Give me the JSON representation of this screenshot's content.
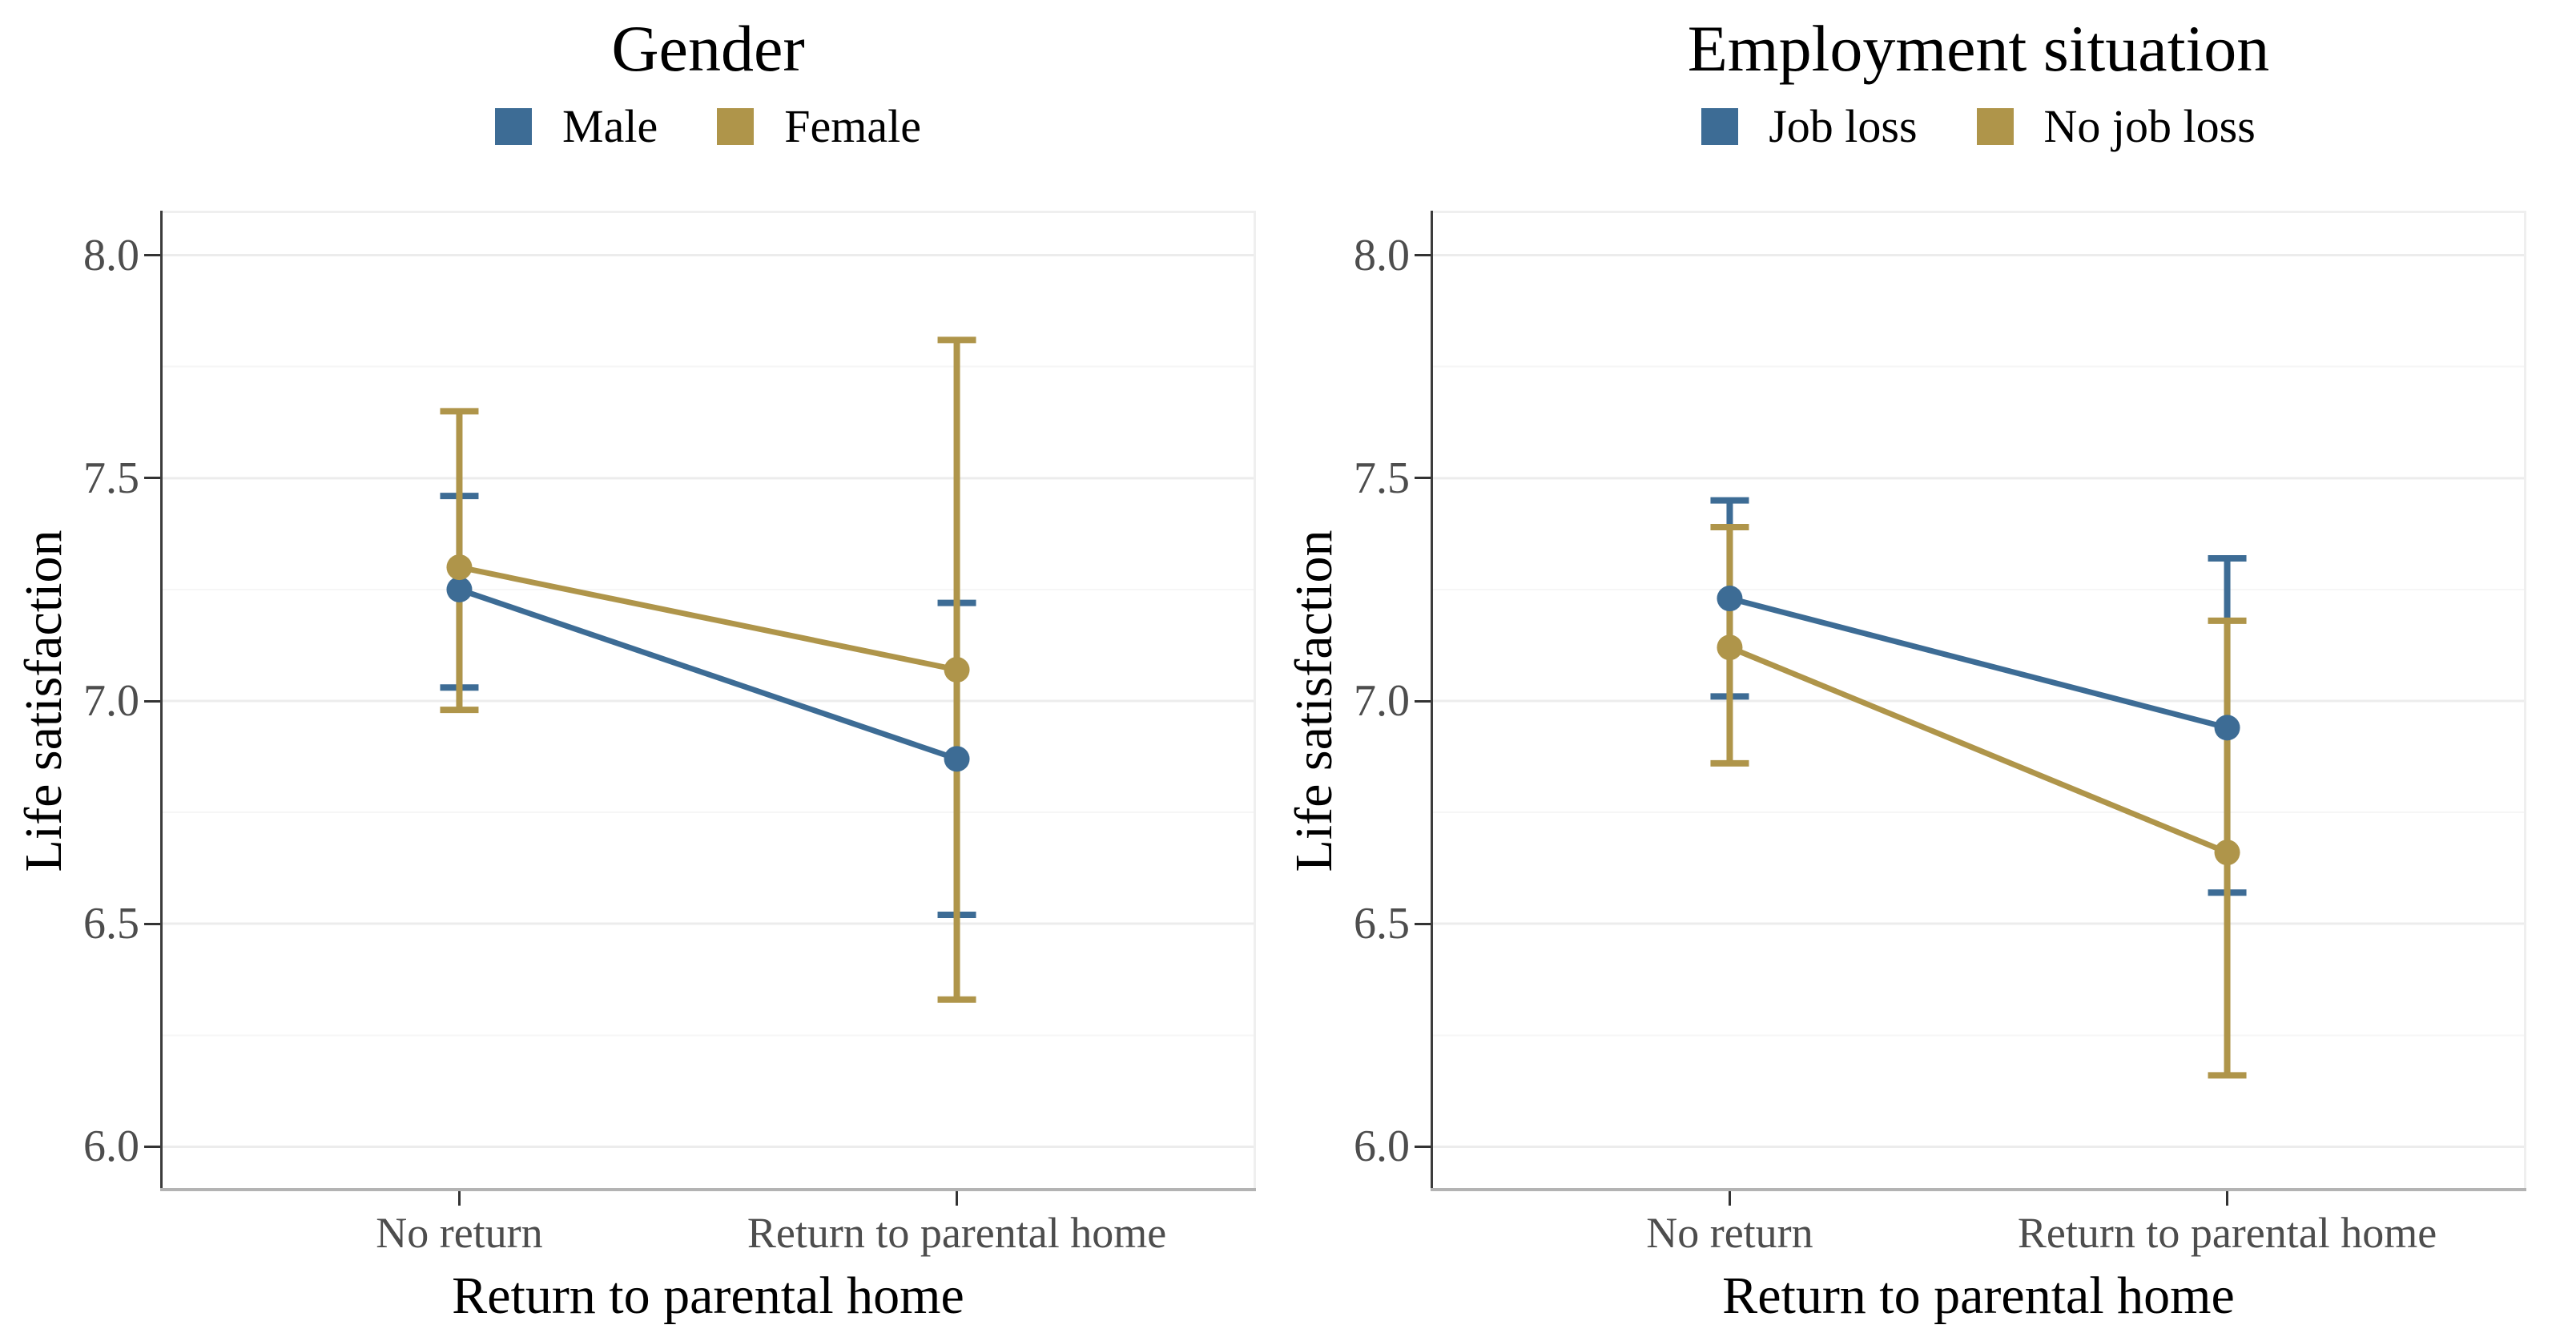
{
  "page": {
    "background": "#ffffff"
  },
  "colors": {
    "blue": "#3D6C95",
    "gold": "#AF954A",
    "grid_major": "#ECECEC",
    "grid_minor": "#F6F6F6",
    "panel_border": "#EFEFEF",
    "axis_line_y": "#3C3C3C",
    "axis_line_x": "#B3B3B3",
    "tick_mark": "#333333",
    "tick_label": "#4D4D4D",
    "text": "#000000"
  },
  "chart_data": [
    {
      "type": "line",
      "subtype": "point-estimate with error bars (interaction plot)",
      "title": "Gender",
      "xlabel": "Return to parental home",
      "ylabel": "Life satisfaction",
      "categories": [
        "No return",
        "Return to parental home"
      ],
      "y_ticks": [
        "8.0",
        "7.5",
        "7.0",
        "6.5",
        "6.0"
      ],
      "y_minor_ticks": [
        7.75,
        7.25,
        6.75,
        6.25
      ],
      "ylim": [
        5.9,
        8.1
      ],
      "grid": "major+minor",
      "legend_position": "top",
      "series": [
        {
          "name": "Male",
          "color": "#3D6C95",
          "values": [
            7.25,
            6.87
          ],
          "ci_low": [
            7.03,
            6.52
          ],
          "ci_high": [
            7.46,
            7.22
          ]
        },
        {
          "name": "Female",
          "color": "#AF954A",
          "values": [
            7.3,
            7.07
          ],
          "ci_low": [
            6.98,
            6.33
          ],
          "ci_high": [
            7.65,
            7.81
          ]
        }
      ]
    },
    {
      "type": "line",
      "subtype": "point-estimate with error bars (interaction plot)",
      "title": "Employment situation",
      "xlabel": "Return to parental home",
      "ylabel": "Life satisfaction",
      "categories": [
        "No return",
        "Return to parental home"
      ],
      "y_ticks": [
        "8.0",
        "7.5",
        "7.0",
        "6.5",
        "6.0"
      ],
      "y_minor_ticks": [
        7.75,
        7.25,
        6.75,
        6.25
      ],
      "ylim": [
        5.9,
        8.1
      ],
      "grid": "major+minor",
      "legend_position": "top",
      "series": [
        {
          "name": "Job loss",
          "color": "#3D6C95",
          "values": [
            7.23,
            6.94
          ],
          "ci_low": [
            7.01,
            6.57
          ],
          "ci_high": [
            7.45,
            7.32
          ]
        },
        {
          "name": "No job loss",
          "color": "#AF954A",
          "values": [
            7.12,
            6.66
          ],
          "ci_low": [
            6.86,
            6.16
          ],
          "ci_high": [
            7.39,
            7.18
          ]
        }
      ]
    }
  ]
}
